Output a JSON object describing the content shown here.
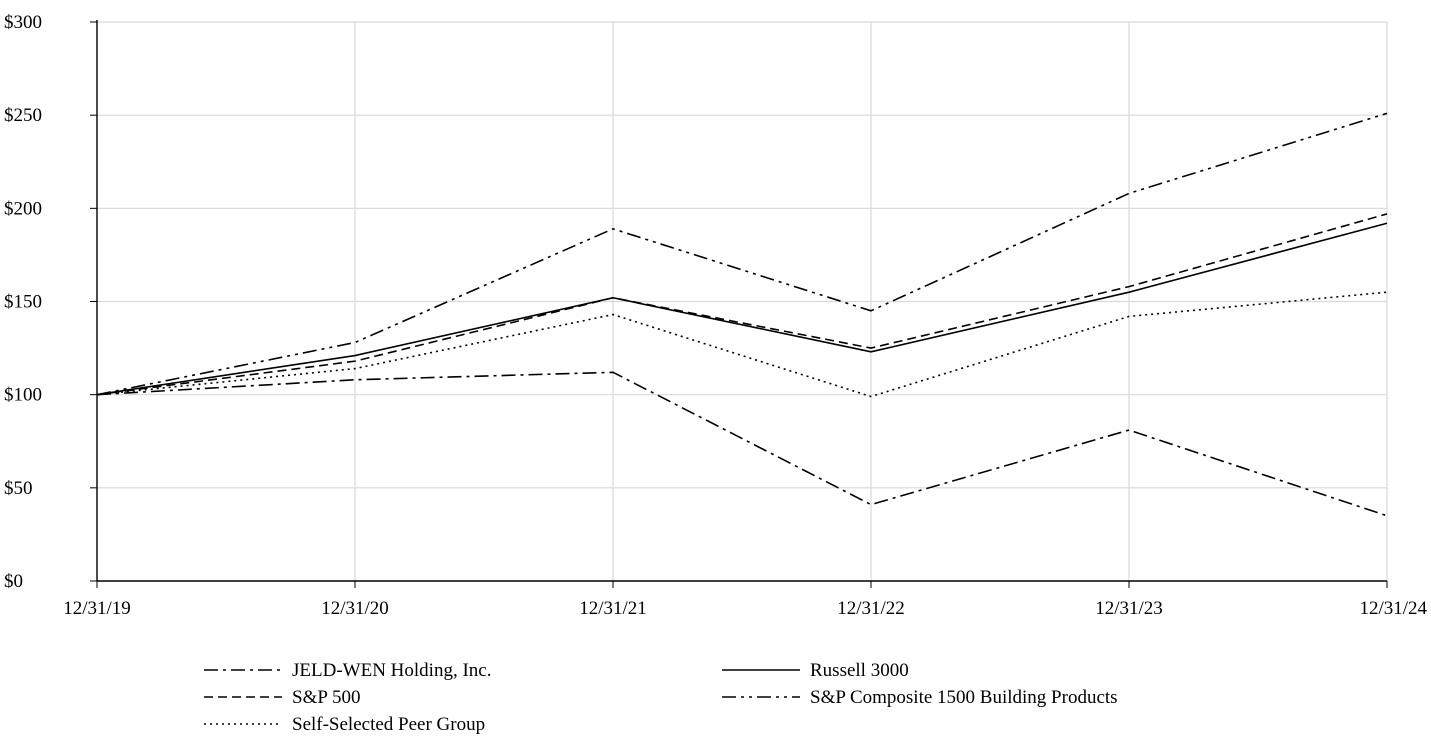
{
  "chart_data": {
    "type": "line",
    "title": "",
    "xlabel": "",
    "ylabel": "",
    "x": [
      "12/31/19",
      "12/31/20",
      "12/31/21",
      "12/31/22",
      "12/31/23",
      "12/31/24"
    ],
    "y_ticks": [
      "$0",
      "$50",
      "$100",
      "$150",
      "$200",
      "$250",
      "$300"
    ],
    "ylim": [
      0,
      300
    ],
    "grid": true,
    "legend_position": "bottom",
    "series": [
      {
        "name": "JELD-WEN Holding, Inc.",
        "dash": "dash-dot",
        "values": [
          100,
          108,
          112,
          41,
          81,
          35
        ]
      },
      {
        "name": "Russell 3000",
        "dash": "solid",
        "values": [
          100,
          121,
          152,
          123,
          155,
          192
        ]
      },
      {
        "name": "S&P 500",
        "dash": "dashed",
        "values": [
          100,
          118,
          152,
          125,
          158,
          197
        ]
      },
      {
        "name": "S&P Composite 1500 Building Products",
        "dash": "dash-dot-dot",
        "values": [
          100,
          128,
          189,
          145,
          208,
          251
        ]
      },
      {
        "name": "Self-Selected Peer Group",
        "dash": "dotted",
        "values": [
          100,
          114,
          143,
          99,
          142,
          155
        ]
      }
    ]
  }
}
